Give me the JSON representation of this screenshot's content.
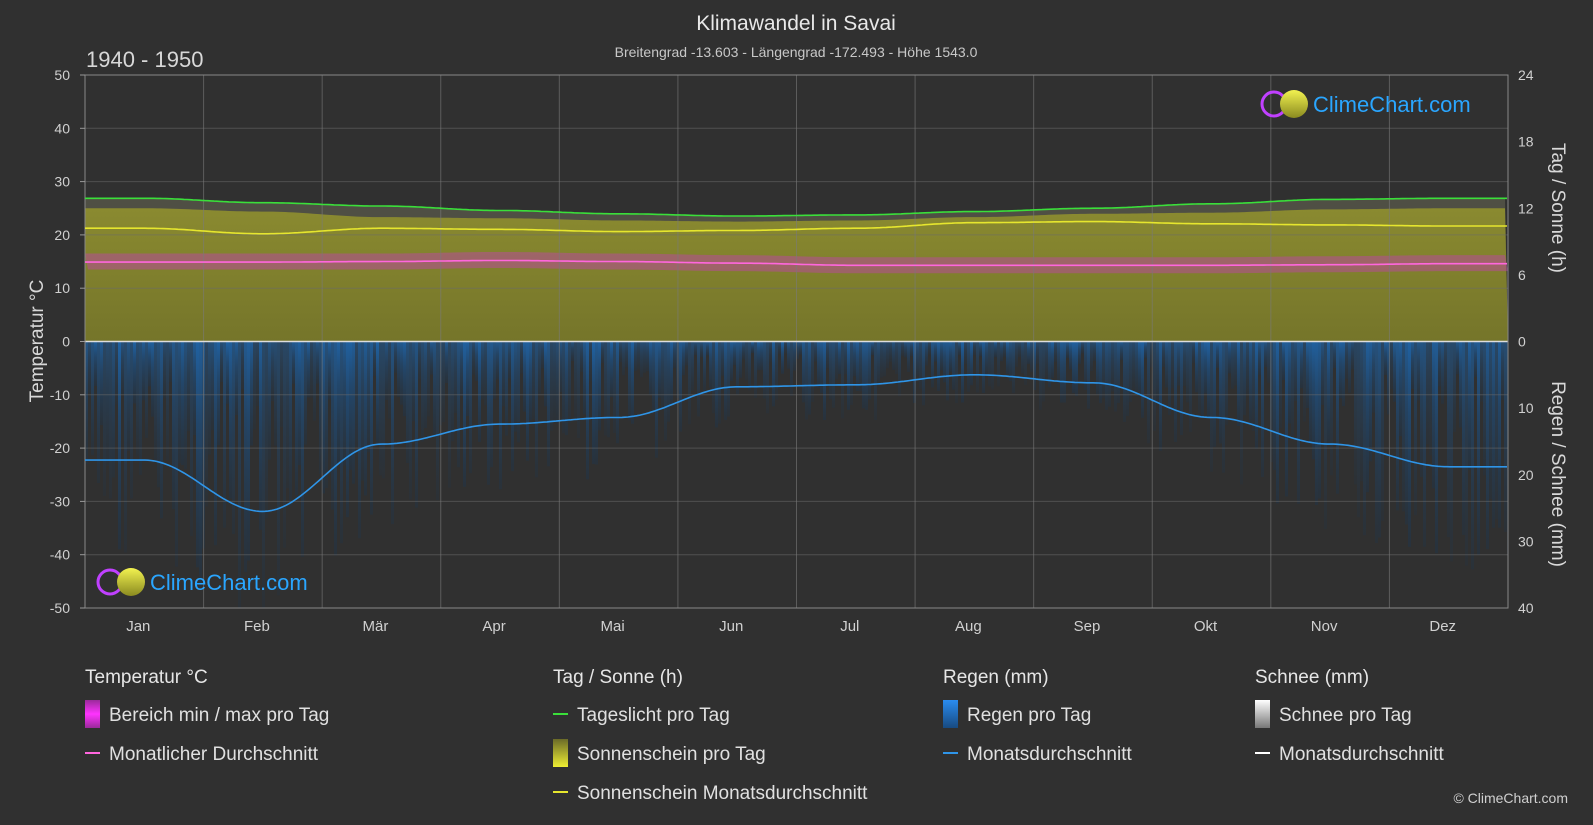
{
  "header": {
    "title": "Klimawandel in Savai",
    "subtitle": "Breitengrad -13.603 - Längengrad -172.493 - Höhe 1543.0",
    "period": "1940 - 1950"
  },
  "branding": {
    "logo_text": "ClimeChart.com",
    "copyright": "© ClimeChart.com"
  },
  "chart_data": {
    "type": "line",
    "title": "Klimawandel in Savai",
    "categories": [
      "Jan",
      "Feb",
      "Mär",
      "Apr",
      "Mai",
      "Jun",
      "Jul",
      "Aug",
      "Sep",
      "Okt",
      "Nov",
      "Dez"
    ],
    "left_axis": {
      "label": "Temperatur °C",
      "range": [
        -50,
        50
      ],
      "ticks": [
        50,
        40,
        30,
        20,
        10,
        0,
        -10,
        -20,
        -30,
        -40,
        -50
      ]
    },
    "right_axis_top": {
      "label": "Tag / Sonne (h)",
      "range": [
        0,
        24
      ],
      "ticks": [
        24,
        18,
        12,
        6,
        0
      ]
    },
    "right_axis_bottom": {
      "label": "Regen / Schnee (mm)",
      "range": [
        0,
        40
      ],
      "ticks": [
        0,
        10,
        20,
        30,
        40
      ]
    },
    "series": [
      {
        "name": "Tageslicht pro Tag",
        "unit": "h",
        "color": "#3adf3a",
        "values": [
          12.9,
          12.5,
          12.2,
          11.8,
          11.5,
          11.3,
          11.4,
          11.7,
          12.0,
          12.4,
          12.8,
          12.9
        ]
      },
      {
        "name": "Sonnenschein Monatsdurchschnitt",
        "unit": "h",
        "color": "#e6e62e",
        "values": [
          10.2,
          9.7,
          10.2,
          10.1,
          9.9,
          10.0,
          10.2,
          10.7,
          10.8,
          10.6,
          10.5,
          10.4
        ]
      },
      {
        "name": "Monatlicher Durchschnitt",
        "unit": "°C",
        "color": "#ff66dd",
        "values": [
          14.9,
          14.9,
          15.0,
          15.2,
          15.0,
          14.7,
          14.3,
          14.3,
          14.3,
          14.3,
          14.4,
          14.6
        ]
      },
      {
        "name": "Monatsdurchschnitt",
        "unit": "mm",
        "color": "#2f95e8",
        "values": [
          17.8,
          25.5,
          15.4,
          12.4,
          11.4,
          6.8,
          6.5,
          5.0,
          6.2,
          11.4,
          15.4,
          18.8
        ]
      }
    ],
    "daily_bands": {
      "sunshine_per_day_h": [
        12.0,
        11.7,
        11.2,
        11.1,
        10.9,
        10.8,
        10.9,
        11.2,
        11.5,
        11.6,
        11.9,
        12.0
      ],
      "temp_range_c": [
        [
          13.5,
          16.5
        ],
        [
          13.5,
          16.5
        ],
        [
          13.5,
          16.5
        ],
        [
          13.8,
          16.8
        ],
        [
          13.5,
          16.5
        ],
        [
          13.2,
          16.2
        ],
        [
          12.8,
          15.8
        ],
        [
          12.8,
          15.8
        ],
        [
          12.8,
          15.8
        ],
        [
          12.8,
          15.8
        ],
        [
          13.0,
          16.0
        ],
        [
          13.2,
          16.2
        ]
      ]
    },
    "grid": true,
    "legend_position": "bottom"
  },
  "legend": {
    "groups": [
      {
        "title": "Temperatur °C",
        "items": [
          {
            "label": "Bereich min / max pro Tag",
            "swatch": "rect",
            "color": "#e040e0"
          },
          {
            "label": "Monatlicher Durchschnitt",
            "swatch": "line",
            "color": "#ff66dd"
          }
        ]
      },
      {
        "title": "Tag / Sonne (h)",
        "items": [
          {
            "label": "Tageslicht pro Tag",
            "swatch": "line",
            "color": "#3adf3a"
          },
          {
            "label": "Sonnenschein pro Tag",
            "swatch": "rect",
            "color": "#d8d830"
          },
          {
            "label": "Sonnenschein Monatsdurchschnitt",
            "swatch": "line",
            "color": "#e6e62e"
          }
        ]
      },
      {
        "title": "Regen (mm)",
        "items": [
          {
            "label": "Regen pro Tag",
            "swatch": "rect",
            "color": "#1e78d0"
          },
          {
            "label": "Monatsdurchschnitt",
            "swatch": "line",
            "color": "#2f95e8"
          }
        ]
      },
      {
        "title": "Schnee (mm)",
        "items": [
          {
            "label": "Schnee pro Tag",
            "swatch": "rect",
            "color": "#cccccc"
          },
          {
            "label": "Monatsdurchschnitt",
            "swatch": "line",
            "color": "#ffffff"
          }
        ]
      }
    ]
  }
}
